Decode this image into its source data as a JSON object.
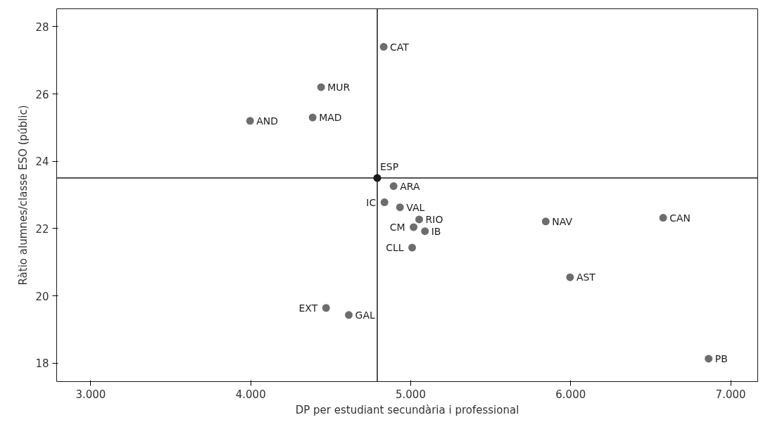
{
  "chart_data": {
    "type": "scatter",
    "xlabel": "DP per estudiant secundària i professional",
    "ylabel": "Ràtio alumnes/classe ESO (públic)",
    "x": [
      4831,
      4440,
      4387,
      3996,
      4791,
      4893,
      4836,
      4933,
      5053,
      5018,
      5089,
      5009,
      5844,
      6578,
      5996,
      4471,
      4613,
      6862
    ],
    "values": [
      27.4,
      26.2,
      25.3,
      25.2,
      23.5,
      23.26,
      22.78,
      22.63,
      22.27,
      22.04,
      21.92,
      21.43,
      22.21,
      22.32,
      20.55,
      19.64,
      19.43,
      18.13
    ],
    "colors": [
      "#6d6d6d",
      "#6d6d6d",
      "#6d6d6d",
      "#6d6d6d",
      "#1a1a1a",
      "#6d6d6d",
      "#6d6d6d",
      "#6d6d6d",
      "#6d6d6d",
      "#6d6d6d",
      "#6d6d6d",
      "#6d6d6d",
      "#6d6d6d",
      "#6d6d6d",
      "#6d6d6d",
      "#6d6d6d",
      "#6d6d6d",
      "#6d6d6d"
    ],
    "marker": "circle",
    "grid": false,
    "xlim": [
      2787,
      7169
    ],
    "ylim": [
      17.45,
      28.53
    ],
    "xticks": [
      {
        "value": 3000,
        "label": "3.000"
      },
      {
        "value": 4000,
        "label": "4.000"
      },
      {
        "value": 5000,
        "label": "5.000"
      },
      {
        "value": 6000,
        "label": "6.000"
      },
      {
        "value": 7000,
        "label": "7.000"
      }
    ],
    "yticks": [
      18,
      20,
      22,
      24,
      26,
      28
    ],
    "ref_lines": [
      {
        "axis": "x",
        "value": 4791,
        "color": "#1a1a1a"
      },
      {
        "axis": "y",
        "value": 23.5,
        "color": "#1a1a1a"
      }
    ],
    "annotations": [
      {
        "text": "CAT",
        "x": 4831,
        "y": 27.4
      },
      {
        "text": "MUR",
        "x": 4440,
        "y": 26.2
      },
      {
        "text": "MAD",
        "x": 4387,
        "y": 25.3
      },
      {
        "text": "AND",
        "x": 3996,
        "y": 25.2
      },
      {
        "text": "ESP",
        "x": 4791,
        "y": 23.5
      },
      {
        "text": "ARA",
        "x": 4893,
        "y": 23.26
      },
      {
        "text": "IC",
        "x": 4836,
        "y": 22.78
      },
      {
        "text": "VAL",
        "x": 4933,
        "y": 22.63
      },
      {
        "text": "RIO",
        "x": 5053,
        "y": 22.27
      },
      {
        "text": "CM",
        "x": 5018,
        "y": 22.04
      },
      {
        "text": "IB",
        "x": 5089,
        "y": 21.92
      },
      {
        "text": "CLL",
        "x": 5009,
        "y": 21.43
      },
      {
        "text": "NAV",
        "x": 5844,
        "y": 22.21
      },
      {
        "text": "CAN",
        "x": 6578,
        "y": 22.32
      },
      {
        "text": "AST",
        "x": 5996,
        "y": 20.55
      },
      {
        "text": "EXT",
        "x": 4471,
        "y": 19.64
      },
      {
        "text": "GAL",
        "x": 4613,
        "y": 19.43
      },
      {
        "text": "PB",
        "x": 6862,
        "y": 18.13
      }
    ]
  }
}
